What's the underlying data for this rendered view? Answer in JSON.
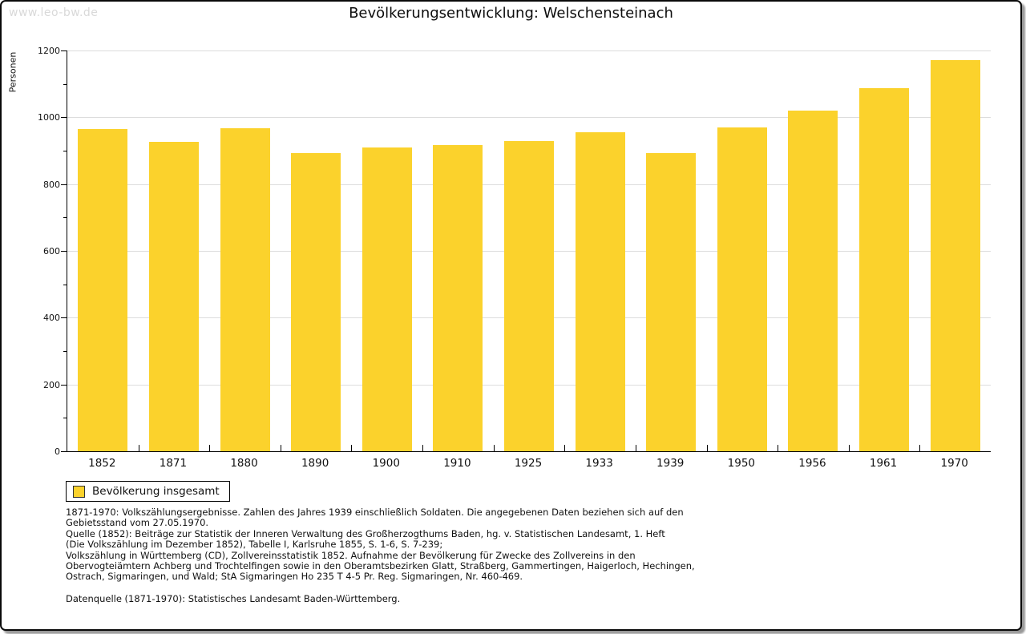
{
  "watermark": "www.leo-bw.de",
  "title": "Bevölkerungsentwicklung: Welschensteinach",
  "chart_data": {
    "type": "bar",
    "title": "Bevölkerungsentwicklung: Welschensteinach",
    "xlabel": "",
    "ylabel": "Personen",
    "categories": [
      "1852",
      "1871",
      "1880",
      "1890",
      "1900",
      "1910",
      "1925",
      "1933",
      "1939",
      "1950",
      "1956",
      "1961",
      "1970"
    ],
    "values": [
      965,
      927,
      966,
      892,
      910,
      916,
      929,
      955,
      892,
      970,
      1020,
      1088,
      1172
    ],
    "ylim": [
      0,
      1200
    ],
    "ytick_major_step": 200,
    "ytick_minor_step": 100,
    "grid": true,
    "legend_position": "bottom-left",
    "series_name": "Bevölkerung insgesamt",
    "bar_color": "#FBD22C"
  },
  "legend": {
    "label": "Bevölkerung insgesamt",
    "swatch_color": "#FBD22C"
  },
  "footnotes": {
    "lines": [
      "1871-1970: Volkszählungsergebnisse. Zahlen des Jahres 1939 einschließlich Soldaten. Die angegebenen Daten beziehen sich auf den",
      "Gebietsstand vom 27.05.1970.",
      "Quelle (1852): Beiträge zur Statistik der Inneren Verwaltung des Großherzogthums Baden, hg. v. Statistischen Landesamt, 1. Heft",
      "(Die Volkszählung im Dezember 1852), Tabelle I, Karlsruhe 1855, S. 1-6, S. 7-239;",
      "Volkszählung in Württemberg (CD), Zollvereinsstatistik 1852. Aufnahme der Bevölkerung für Zwecke des Zollvereins in den",
      "Obervogteiämtern Achberg und Trochtelfingen sowie in den Oberamtsbezirken Glatt, Straßberg, Gammertingen, Haigerloch, Hechingen,",
      "Ostrach, Sigmaringen, und Wald; StA Sigmaringen Ho 235 T 4-5 Pr. Reg. Sigmaringen, Nr. 460-469."
    ],
    "datenquelle": "Datenquelle (1871-1970): Statistisches Landesamt Baden-Württemberg."
  },
  "colors": {
    "bar": "#FBD22C",
    "gridline": "#dcdcdc",
    "axis": "#000000",
    "watermark": "#d9d9d9",
    "frame_border": "#0a0a0a",
    "frame_shadow": "#999999"
  }
}
